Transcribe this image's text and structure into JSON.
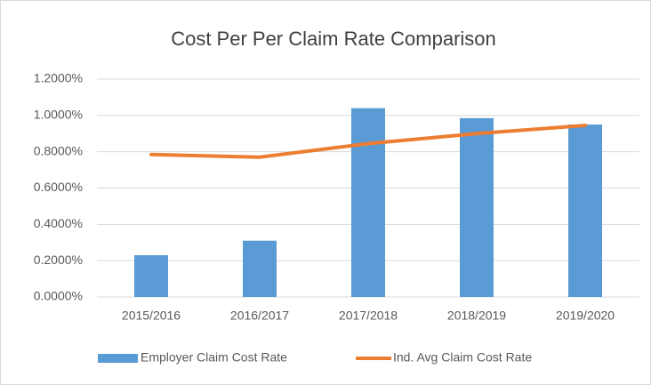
{
  "chart_data": {
    "type": "bar",
    "title": "Cost Per Per Claim Rate Comparison",
    "categories": [
      "2015/2016",
      "2016/2017",
      "2017/2018",
      "2018/2019",
      "2019/2020"
    ],
    "series": [
      {
        "name": "Employer Claim Cost Rate",
        "type": "bar",
        "color": "#5b9bd5",
        "values": [
          0.23,
          0.31,
          1.04,
          0.985,
          0.95
        ]
      },
      {
        "name": "Ind. Avg Claim Cost Rate",
        "type": "line",
        "color": "#ed7d31",
        "values": [
          0.785,
          0.77,
          0.845,
          0.9,
          0.945
        ]
      }
    ],
    "ylim": [
      0,
      1.2
    ],
    "yticks": [
      {
        "value": 0,
        "label": "0.0000%"
      },
      {
        "value": 0.2,
        "label": "0.2000%"
      },
      {
        "value": 0.4,
        "label": "0.4000%"
      },
      {
        "value": 0.6,
        "label": "0.6000%"
      },
      {
        "value": 0.8,
        "label": "0.8000%"
      },
      {
        "value": 1.0,
        "label": "1.0000%"
      },
      {
        "value": 1.2,
        "label": "1.2000%"
      }
    ],
    "grid": true,
    "legend": "bottom"
  }
}
